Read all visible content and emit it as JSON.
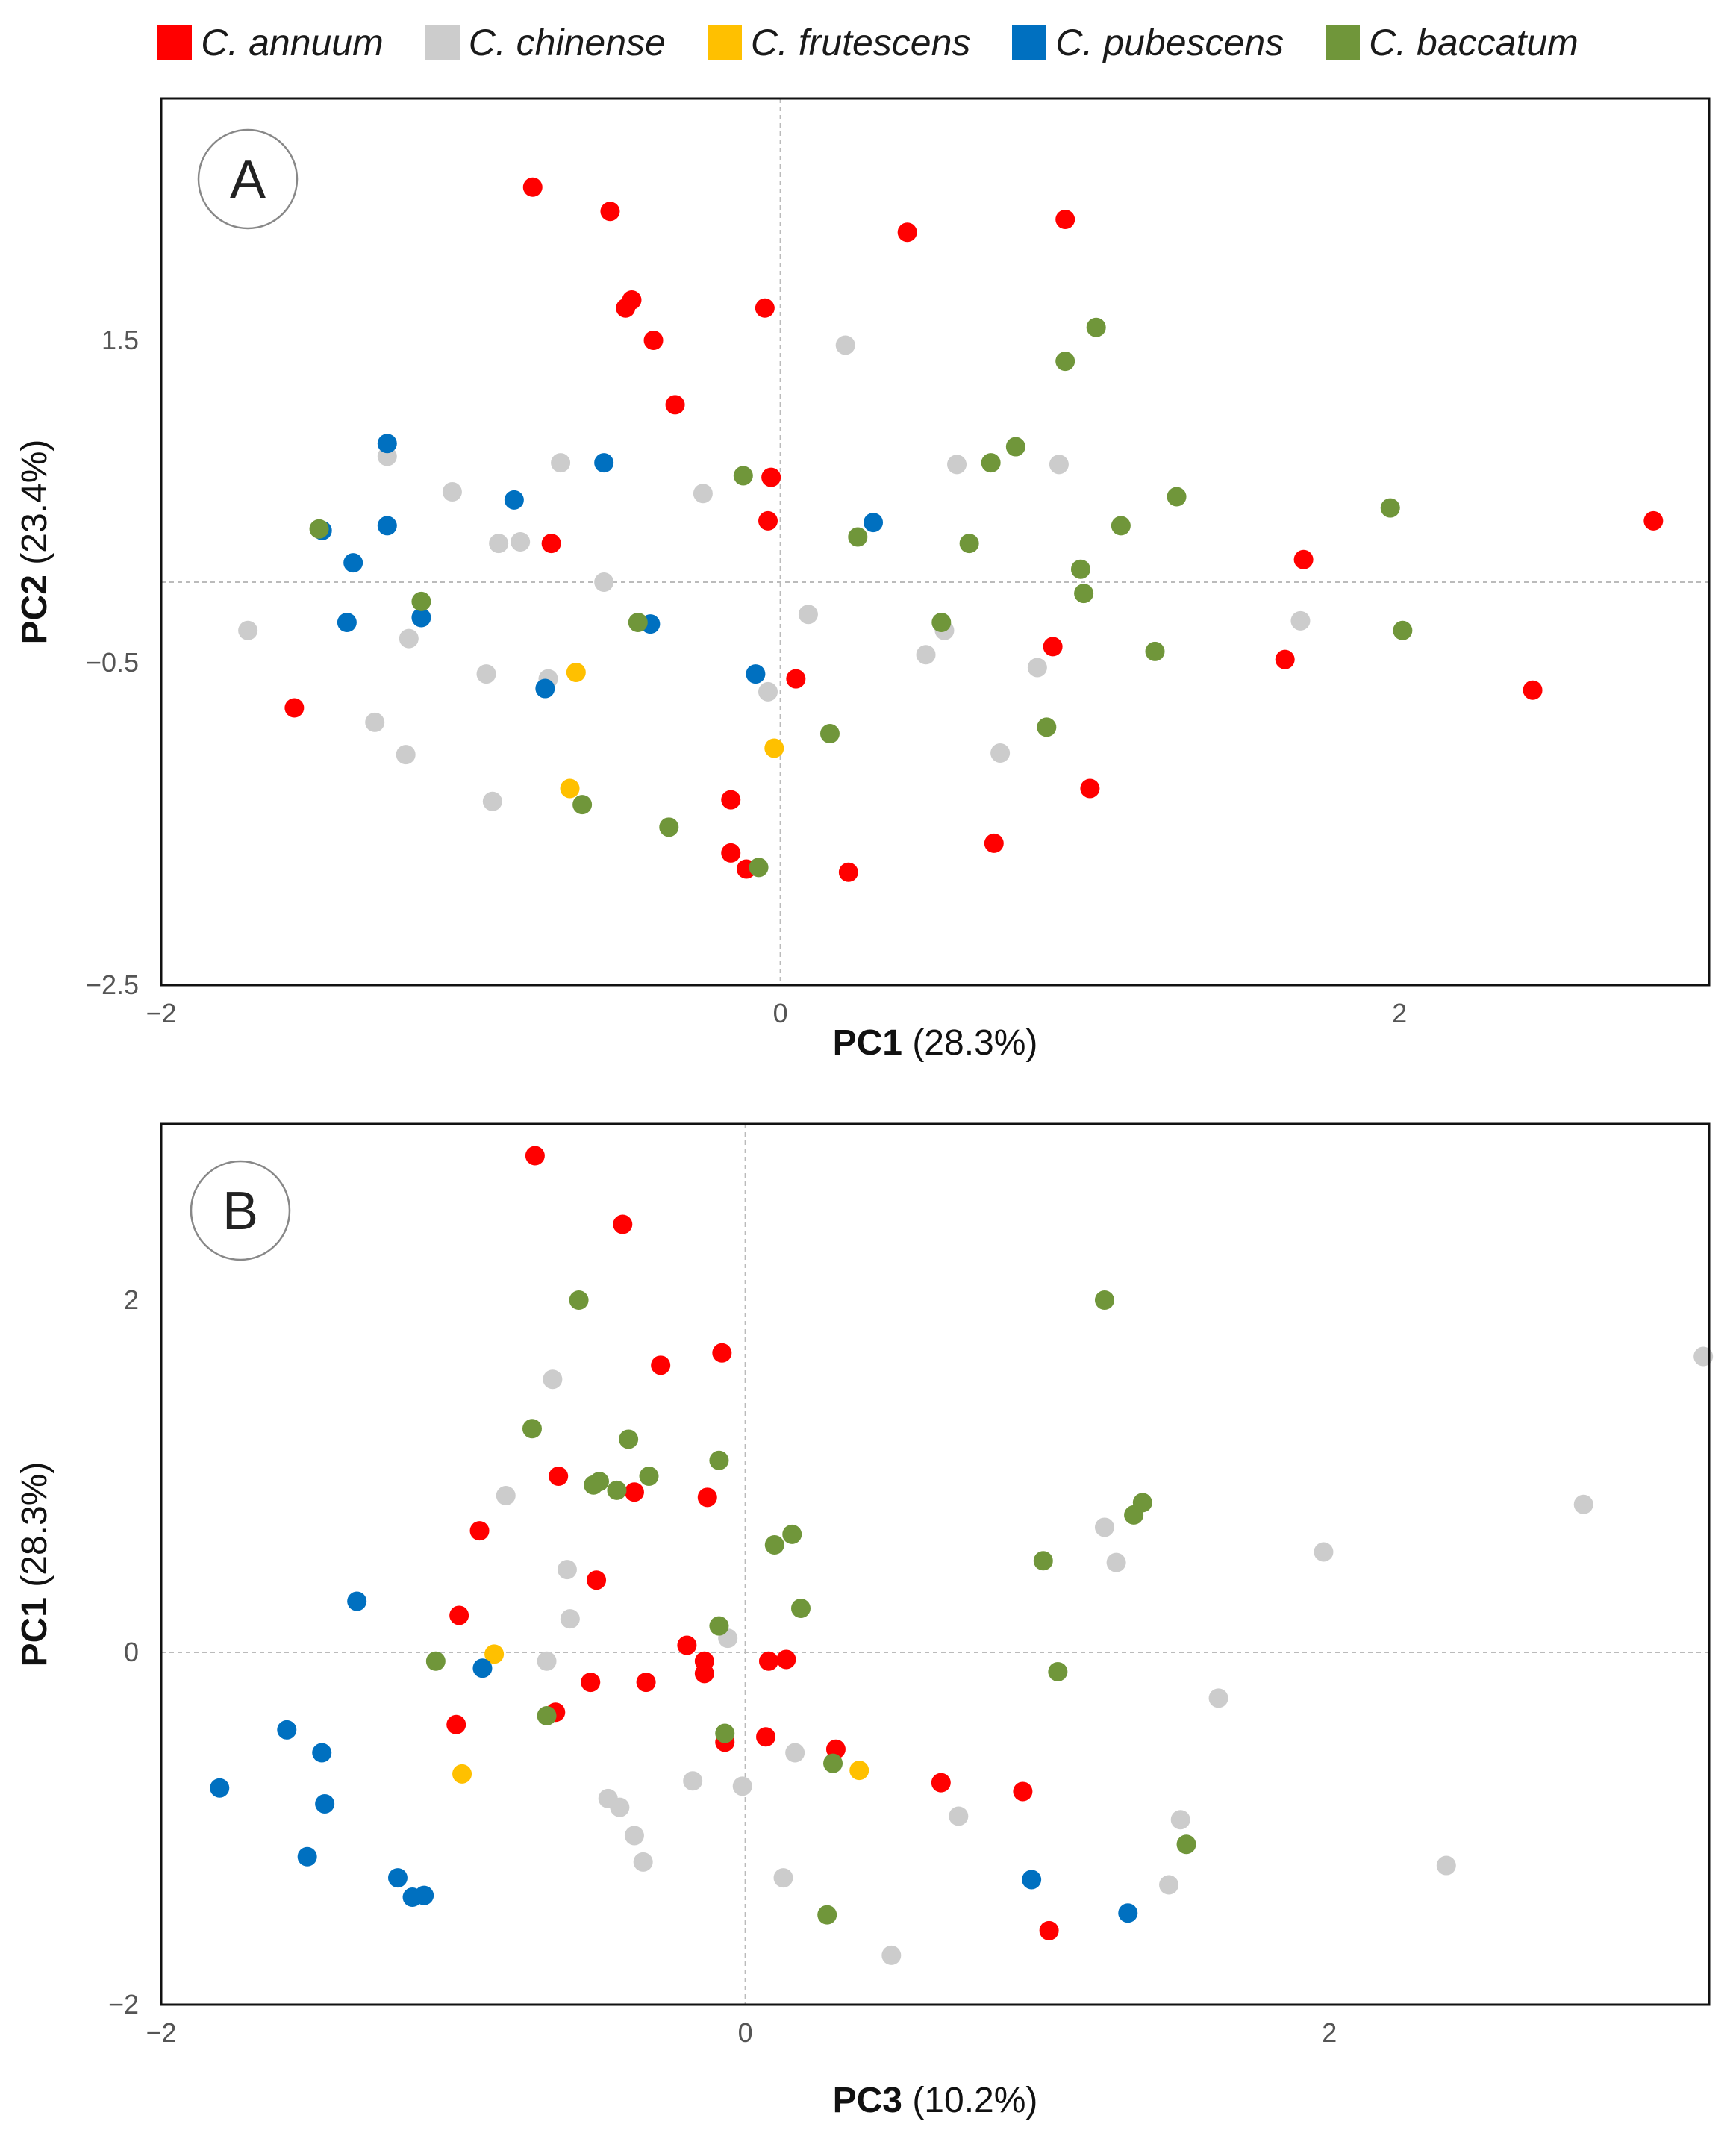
{
  "legend": [
    {
      "label": "C. annuum",
      "color": "#ff0000"
    },
    {
      "label": "C. chinense",
      "color": "#cccccc"
    },
    {
      "label": "C. frutescens",
      "color": "#ffc000"
    },
    {
      "label": "C. pubescens",
      "color": "#0070c0"
    },
    {
      "label": "C. baccatum",
      "color": "#70963a"
    }
  ],
  "chart_data": [
    {
      "type": "scatter",
      "panel_label": "A",
      "xlabel": {
        "name": "PC1",
        "pct": "(28.3%)"
      },
      "ylabel": {
        "name": "PC2",
        "pct": "(23.4%)"
      },
      "xlim": [
        -2,
        3
      ],
      "ylim": [
        -2.5,
        3
      ],
      "xticks": [
        -2,
        0,
        2
      ],
      "xtick_labels": [
        "−2",
        "0",
        "2"
      ],
      "yticks": [
        -2.5,
        -0.5,
        1.5
      ],
      "ytick_labels": [
        "−2.5",
        "−0.5",
        "1.5"
      ],
      "series": [
        {
          "name": "C. annuum",
          "color": "#ff0000",
          "points": [
            [
              -0.8,
              2.45
            ],
            [
              -0.55,
              2.3
            ],
            [
              -0.5,
              1.7
            ],
            [
              -0.48,
              1.75
            ],
            [
              -0.41,
              1.5
            ],
            [
              -0.34,
              1.1
            ],
            [
              -0.05,
              1.7
            ],
            [
              -0.03,
              0.65
            ],
            [
              -0.04,
              0.38
            ],
            [
              -0.74,
              0.24
            ],
            [
              0.41,
              2.17
            ],
            [
              0.92,
              2.25
            ],
            [
              0.05,
              -0.6
            ],
            [
              0.88,
              -0.4
            ],
            [
              1.69,
              0.14
            ],
            [
              2.82,
              0.38
            ],
            [
              1.63,
              -0.48
            ],
            [
              2.43,
              -0.67
            ],
            [
              -1.57,
              -0.78
            ],
            [
              -0.16,
              -1.35
            ],
            [
              -0.16,
              -1.68
            ],
            [
              -0.11,
              -1.78
            ],
            [
              0.22,
              -1.8
            ],
            [
              0.69,
              -1.62
            ],
            [
              1.0,
              -1.28
            ]
          ]
        },
        {
          "name": "C. chinense",
          "color": "#cccccc",
          "points": [
            [
              0.21,
              1.47
            ],
            [
              -1.27,
              0.78
            ],
            [
              -0.71,
              0.74
            ],
            [
              -1.06,
              0.56
            ],
            [
              -0.91,
              0.24
            ],
            [
              -0.84,
              0.25
            ],
            [
              -0.57,
              0.0
            ],
            [
              -0.25,
              0.55
            ],
            [
              0.57,
              0.73
            ],
            [
              0.9,
              0.73
            ],
            [
              -1.72,
              -0.3
            ],
            [
              -1.2,
              -0.35
            ],
            [
              0.09,
              -0.2
            ],
            [
              0.53,
              -0.3
            ],
            [
              0.47,
              -0.45
            ],
            [
              0.83,
              -0.53
            ],
            [
              1.68,
              -0.24
            ],
            [
              -0.95,
              -0.57
            ],
            [
              -0.75,
              -0.6
            ],
            [
              -0.04,
              -0.68
            ],
            [
              -1.31,
              -0.87
            ],
            [
              -1.21,
              -1.07
            ],
            [
              0.71,
              -1.06
            ],
            [
              -0.93,
              -1.36
            ]
          ]
        },
        {
          "name": "C. frutescens",
          "color": "#ffc000",
          "points": [
            [
              -0.66,
              -0.56
            ],
            [
              -0.02,
              -1.03
            ],
            [
              -0.68,
              -1.28
            ]
          ]
        },
        {
          "name": "C. pubescens",
          "color": "#0070c0",
          "points": [
            [
              -1.27,
              0.86
            ],
            [
              -0.57,
              0.74
            ],
            [
              -0.86,
              0.51
            ],
            [
              -1.48,
              0.32
            ],
            [
              -1.27,
              0.35
            ],
            [
              -1.38,
              0.12
            ],
            [
              -0.42,
              -0.26
            ],
            [
              -1.4,
              -0.25
            ],
            [
              -1.16,
              -0.22
            ],
            [
              0.3,
              0.37
            ],
            [
              -0.08,
              -0.57
            ],
            [
              -0.76,
              -0.66
            ]
          ]
        },
        {
          "name": "C. baccatum",
          "color": "#70963a",
          "points": [
            [
              1.02,
              1.58
            ],
            [
              0.92,
              1.37
            ],
            [
              0.76,
              0.84
            ],
            [
              0.68,
              0.74
            ],
            [
              -0.12,
              0.66
            ],
            [
              1.28,
              0.53
            ],
            [
              1.1,
              0.35
            ],
            [
              1.97,
              0.46
            ],
            [
              0.25,
              0.28
            ],
            [
              0.61,
              0.24
            ],
            [
              0.98,
              -0.07
            ],
            [
              0.97,
              0.08
            ],
            [
              0.52,
              -0.25
            ],
            [
              -0.46,
              -0.25
            ],
            [
              -1.49,
              0.33
            ],
            [
              -1.16,
              -0.12
            ],
            [
              2.01,
              -0.3
            ],
            [
              1.21,
              -0.43
            ],
            [
              0.86,
              -0.9
            ],
            [
              0.16,
              -0.94
            ],
            [
              -0.64,
              -1.38
            ],
            [
              -0.36,
              -1.52
            ],
            [
              -0.07,
              -1.77
            ]
          ]
        }
      ]
    },
    {
      "type": "scatter",
      "panel_label": "B",
      "xlabel": {
        "name": "PC3",
        "pct": "(10.2%)"
      },
      "ylabel": {
        "name": "PC1",
        "pct": "(28.3%)"
      },
      "xlim": [
        -2,
        3.3
      ],
      "ylim": [
        -2,
        3
      ],
      "xticks": [
        -2,
        0,
        2
      ],
      "xtick_labels": [
        "−2",
        "0",
        "2"
      ],
      "yticks": [
        -2,
        0,
        2
      ],
      "ytick_labels": [
        "−2",
        "0",
        "2"
      ],
      "series": [
        {
          "name": "C. annuum",
          "color": "#ff0000",
          "points": [
            [
              -0.72,
              2.82
            ],
            [
              -0.42,
              2.43
            ],
            [
              -0.29,
              1.63
            ],
            [
              -0.08,
              1.7
            ],
            [
              -0.64,
              1.0
            ],
            [
              -0.38,
              0.91
            ],
            [
              -0.13,
              0.88
            ],
            [
              -0.91,
              0.69
            ],
            [
              -0.51,
              0.41
            ],
            [
              -0.98,
              0.21
            ],
            [
              -0.2,
              0.04
            ],
            [
              -0.14,
              -0.05
            ],
            [
              -0.14,
              -0.12
            ],
            [
              0.08,
              -0.05
            ],
            [
              0.14,
              -0.04
            ],
            [
              -0.53,
              -0.17
            ],
            [
              -0.34,
              -0.17
            ],
            [
              -0.65,
              -0.34
            ],
            [
              -0.99,
              -0.41
            ],
            [
              -0.07,
              -0.51
            ],
            [
              0.07,
              -0.48
            ],
            [
              0.31,
              -0.55
            ],
            [
              0.67,
              -0.74
            ],
            [
              0.95,
              -0.79
            ],
            [
              1.04,
              -1.58
            ]
          ]
        },
        {
          "name": "C. chinense",
          "color": "#cccccc",
          "points": [
            [
              -0.66,
              1.55
            ],
            [
              -0.82,
              0.89
            ],
            [
              -0.61,
              0.47
            ],
            [
              -0.6,
              0.19
            ],
            [
              -0.68,
              -0.05
            ],
            [
              -0.06,
              0.08
            ],
            [
              0.17,
              -0.57
            ],
            [
              -0.18,
              -0.73
            ],
            [
              -0.01,
              -0.76
            ],
            [
              -0.47,
              -0.83
            ],
            [
              -0.43,
              -0.88
            ],
            [
              -0.38,
              -1.04
            ],
            [
              -0.35,
              -1.19
            ],
            [
              0.13,
              -1.28
            ],
            [
              0.5,
              -1.72
            ],
            [
              0.73,
              -0.93
            ],
            [
              1.23,
              0.71
            ],
            [
              1.27,
              0.51
            ],
            [
              1.62,
              -0.26
            ],
            [
              1.49,
              -0.95
            ],
            [
              1.45,
              -1.32
            ],
            [
              1.98,
              0.57
            ],
            [
              2.4,
              -1.21
            ],
            [
              2.87,
              0.84
            ],
            [
              3.28,
              1.68
            ]
          ]
        },
        {
          "name": "C. frutescens",
          "color": "#ffc000",
          "points": [
            [
              -0.86,
              -0.01
            ],
            [
              -0.97,
              -0.69
            ],
            [
              0.39,
              -0.67
            ]
          ]
        },
        {
          "name": "C. pubescens",
          "color": "#0070c0",
          "points": [
            [
              -1.33,
              0.29
            ],
            [
              -0.9,
              -0.09
            ],
            [
              -1.57,
              -0.44
            ],
            [
              -1.45,
              -0.57
            ],
            [
              -1.44,
              -0.86
            ],
            [
              -1.8,
              -0.77
            ],
            [
              -1.5,
              -1.16
            ],
            [
              -1.19,
              -1.28
            ],
            [
              -1.14,
              -1.39
            ],
            [
              -1.1,
              -1.38
            ],
            [
              0.98,
              -1.29
            ],
            [
              1.31,
              -1.48
            ]
          ]
        },
        {
          "name": "C. baccatum",
          "color": "#70963a",
          "points": [
            [
              -0.57,
              2.0
            ],
            [
              -0.73,
              1.27
            ],
            [
              -0.4,
              1.21
            ],
            [
              -0.09,
              1.09
            ],
            [
              -0.5,
              0.97
            ],
            [
              -0.33,
              1.0
            ],
            [
              -0.52,
              0.95
            ],
            [
              -0.44,
              0.92
            ],
            [
              0.16,
              0.67
            ],
            [
              0.1,
              0.61
            ],
            [
              1.02,
              0.52
            ],
            [
              1.33,
              0.78
            ],
            [
              1.36,
              0.85
            ],
            [
              1.23,
              2.0
            ],
            [
              0.19,
              0.25
            ],
            [
              -0.09,
              0.15
            ],
            [
              -1.06,
              -0.05
            ],
            [
              1.07,
              -0.11
            ],
            [
              -0.68,
              -0.36
            ],
            [
              -0.07,
              -0.46
            ],
            [
              0.3,
              -0.63
            ],
            [
              1.51,
              -1.09
            ],
            [
              0.28,
              -1.49
            ]
          ]
        }
      ]
    }
  ]
}
